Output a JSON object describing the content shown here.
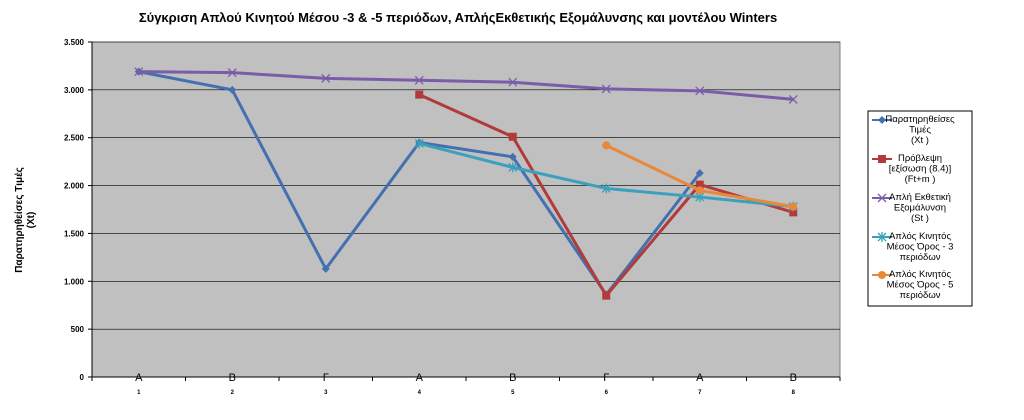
{
  "chart_data": {
    "type": "line",
    "title": "Σύγκριση Απλού Κινητού Μέσου -3 & -5 περιόδων, ΑπλήςΕκθετικής Εξομάλυνσης και μοντέλου Winters",
    "ylabel_line1": "Παρατηρηθείσες Τιμές",
    "ylabel_line2": "(Xt)",
    "ylim": [
      0,
      3500
    ],
    "yticks": [
      0,
      500,
      1000,
      1500,
      2000,
      2500,
      3000,
      3500
    ],
    "ytick_labels": [
      "0",
      "500",
      "1.000",
      "1.500",
      "2.000",
      "2.500",
      "3.000",
      "3.500"
    ],
    "categories": [
      "Α",
      "Β",
      "Γ",
      "Α",
      "Β",
      "Γ",
      "Α",
      "Β"
    ],
    "periods": [
      "1",
      "2",
      "3",
      "4",
      "5",
      "6",
      "7",
      "8"
    ],
    "grid": true,
    "legend_position": "right",
    "plot_background": "#c0c0c0",
    "series": [
      {
        "name_lines": [
          "Παρατηρηθείσες",
          "Τιμές",
          "(Xt )"
        ],
        "color": "#4470b0",
        "marker": "diamond",
        "values": [
          3190,
          3000,
          1130,
          2450,
          2300,
          860,
          2130,
          null
        ]
      },
      {
        "name_lines": [
          "Πρόβλεψη",
          "[εξίσωση (8.4)]",
          "(Ft+m )"
        ],
        "color": "#b23a3a",
        "marker": "square",
        "values": [
          null,
          null,
          null,
          2950,
          2510,
          850,
          2010,
          1720
        ]
      },
      {
        "name_lines": [
          "Απλή Εκθετική",
          "Εξομάλυνση",
          "(St )"
        ],
        "color": "#7a5ca8",
        "marker": "x",
        "values": [
          3190,
          3180,
          3120,
          3100,
          3080,
          3010,
          2990,
          2900
        ]
      },
      {
        "name_lines": [
          "Απλός Κινητός",
          "Μέσος Όρος - 3",
          "περιόδων"
        ],
        "color": "#3ba0bd",
        "marker": "star",
        "values": [
          null,
          null,
          null,
          2440,
          2190,
          1970,
          1880,
          1780
        ]
      },
      {
        "name_lines": [
          "Απλός Κινητός",
          "Μέσος Όρος - 5",
          "περιόδων"
        ],
        "color": "#e8893a",
        "marker": "circle",
        "values": [
          null,
          null,
          null,
          null,
          null,
          2420,
          1950,
          1780
        ]
      }
    ]
  }
}
